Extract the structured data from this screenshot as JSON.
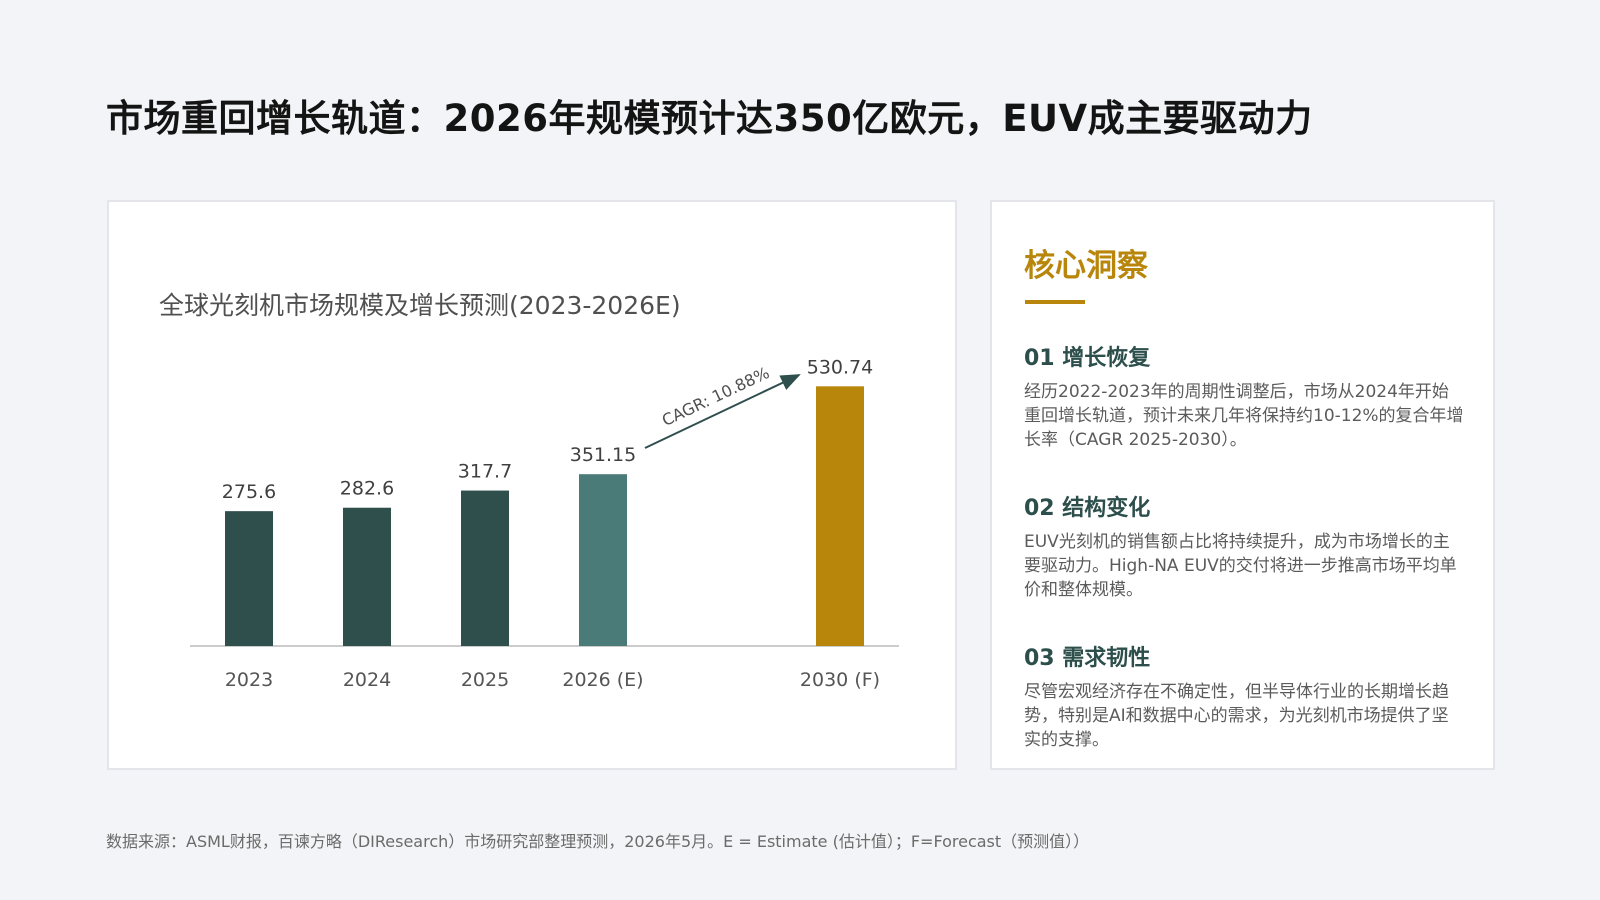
{
  "page": {
    "title": "市场重回增长轨道：2026年规模预计达350亿欧元，EUV成主要驱动力"
  },
  "chart_data": {
    "type": "bar",
    "title": "全球光刻机市场规模及增长预测(2023-2026E)",
    "categories": [
      "2023",
      "2024",
      "2025",
      "2026 (E)",
      "2030 (F)"
    ],
    "values": [
      275.6,
      282.6,
      317.7,
      351.15,
      530.74
    ],
    "value_labels": [
      "275.6",
      "282.6",
      "317.7",
      "351.15",
      "530.74"
    ],
    "bar_colors": [
      "#2f4f4d",
      "#2f4f4d",
      "#2f4f4d",
      "#4a7b79",
      "#b8860b"
    ],
    "annotation": {
      "text": "CAGR: 10.88%",
      "from": "2026 (E)",
      "to": "2030 (F)",
      "color": "#2f4f4d"
    },
    "axis_color": "#cccccc",
    "ylim": [
      0,
      560
    ],
    "xlabel": "",
    "ylabel": "",
    "grid": false,
    "legend": "none"
  },
  "insights": {
    "heading": "核心洞察",
    "accent_color": "#b8860b",
    "items": [
      {
        "title": "01 增长恢复",
        "text": "经历2022-2023年的周期性调整后，市场从2024年开始重回增长轨道，预计未来几年将保持约10-12%的复合年增长率（CAGR 2025-2030）。"
      },
      {
        "title": "02 结构变化",
        "text": "EUV光刻机的销售额占比将持续提升，成为市场增长的主要驱动力。High-NA EUV的交付将进一步推高市场平均单价和整体规模。"
      },
      {
        "title": "03 需求韧性",
        "text": "尽管宏观经济存在不确定性，但半导体行业的长期增长趋势，特别是AI和数据中心的需求，为光刻机市场提供了坚实的支撑。"
      }
    ]
  },
  "footnote": "数据来源：ASML财报，百谏方略（DIResearch）市场研究部整理预测，2026年5月。E = Estimate (估计值）；F=Forecast（预测值））"
}
